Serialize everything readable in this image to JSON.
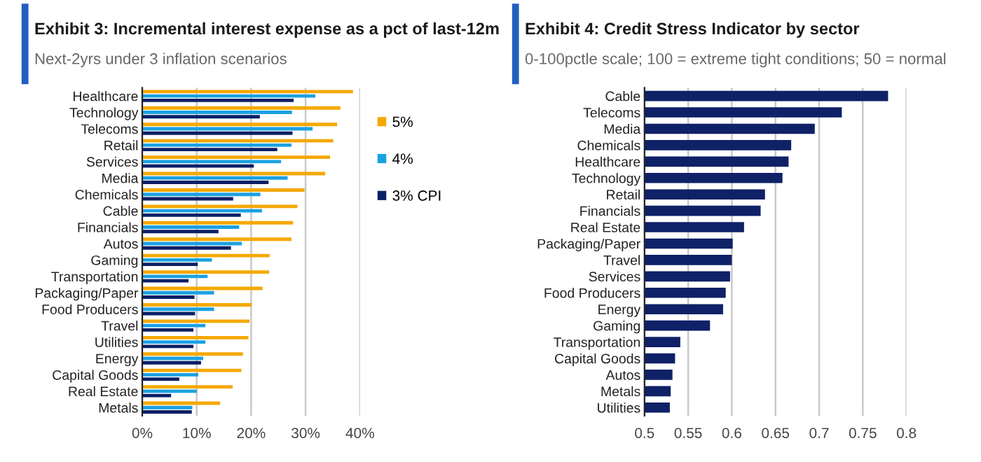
{
  "chart_data": [
    {
      "type": "bar",
      "orientation": "horizontal",
      "title": "Exhibit 3: Incremental interest expense as a pct of last-12m",
      "subtitle": "Next-2yrs under 3 inflation scenarios",
      "categories": [
        "Healthcare",
        "Technology",
        "Telecoms",
        "Retail",
        "Services",
        "Media",
        "Chemicals",
        "Cable",
        "Financials",
        "Autos",
        "Gaming",
        "Transportation",
        "Packaging/Paper",
        "Food Producers",
        "Travel",
        "Utilities",
        "Energy",
        "Capital Goods",
        "Real Estate",
        "Metals"
      ],
      "series": [
        {
          "name": "5%",
          "color": "#f5a800",
          "values": [
            38.7,
            36.4,
            35.8,
            35.1,
            34.5,
            33.6,
            29.8,
            28.5,
            27.7,
            27.4,
            23.4,
            23.3,
            22.1,
            20.1,
            19.7,
            19.5,
            18.5,
            18.2,
            16.6,
            14.3
          ]
        },
        {
          "name": "4%",
          "color": "#1ba1e2",
          "values": [
            31.8,
            27.5,
            31.3,
            27.4,
            25.5,
            26.7,
            21.7,
            22.0,
            17.8,
            18.3,
            12.8,
            12.0,
            13.2,
            13.2,
            11.6,
            11.6,
            11.2,
            10.3,
            10.0,
            9.2
          ]
        },
        {
          "name": "3% CPI",
          "color": "#0b1f65",
          "values": [
            27.8,
            21.6,
            27.6,
            24.8,
            20.5,
            23.2,
            16.7,
            18.1,
            14.0,
            16.3,
            10.2,
            8.5,
            9.6,
            9.7,
            9.4,
            9.4,
            10.8,
            6.8,
            5.3,
            9.1
          ]
        }
      ],
      "xlim": [
        0,
        40
      ],
      "xticks": [
        {
          "value": 0,
          "label": "0%"
        },
        {
          "value": 10,
          "label": "10%"
        },
        {
          "value": 20,
          "label": "20%"
        },
        {
          "value": 30,
          "label": "30%"
        },
        {
          "value": 40,
          "label": "40%"
        }
      ],
      "grid": "x",
      "legend": "right"
    },
    {
      "type": "bar",
      "orientation": "horizontal",
      "title": "Exhibit 4: Credit Stress Indicator by sector",
      "subtitle": "0-100pctle scale; 100 = extreme tight conditions; 50 = normal",
      "categories": [
        "Cable",
        "Telecoms",
        "Media",
        "Chemicals",
        "Healthcare",
        "Technology",
        "Retail",
        "Financials",
        "Real Estate",
        "Packaging/Paper",
        "Travel",
        "Services",
        "Food Producers",
        "Energy",
        "Gaming",
        "Transportation",
        "Capital Goods",
        "Autos",
        "Metals",
        "Utilities"
      ],
      "series": [
        {
          "color": "#0f2167",
          "values": [
            0.779,
            0.726,
            0.695,
            0.668,
            0.665,
            0.658,
            0.638,
            0.633,
            0.614,
            0.601,
            0.6,
            0.598,
            0.593,
            0.59,
            0.575,
            0.541,
            0.535,
            0.532,
            0.53,
            0.529
          ]
        }
      ],
      "xlim": [
        0.5,
        0.8
      ],
      "xticks": [
        0.5,
        0.55,
        0.6,
        0.65,
        0.7,
        0.75,
        0.8
      ],
      "grid": "x"
    }
  ]
}
